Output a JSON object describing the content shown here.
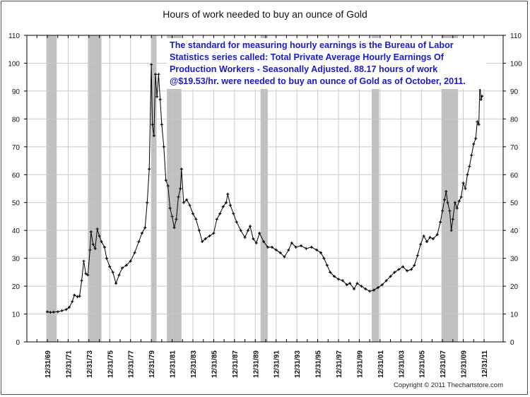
{
  "chart_data": {
    "type": "line",
    "title": "Hours of work needed to buy an ounce of Gold",
    "xlabel": "",
    "ylabel": "",
    "ylim": [
      0,
      110
    ],
    "yticks": [
      0,
      10,
      20,
      30,
      40,
      50,
      60,
      70,
      80,
      90,
      100,
      110
    ],
    "xtick_labels": [
      "12/31/69",
      "12/31/71",
      "12/31/73",
      "12/31/75",
      "12/31/77",
      "12/31/79",
      "12/31/81",
      "12/31/83",
      "12/31/85",
      "12/31/87",
      "12/31/89",
      "12/31/91",
      "12/31/93",
      "12/31/95",
      "12/31/97",
      "12/31/99",
      "12/31/01",
      "12/31/03",
      "12/31/05",
      "12/31/07",
      "12/31/09",
      "12/31/11"
    ],
    "grid": true,
    "y_axis_both_sides": true,
    "line_color": "#000000",
    "band_color": "#c0c0c0",
    "recession_bands": [
      [
        1969.9,
        1970.9
      ],
      [
        1973.9,
        1975.2
      ],
      [
        1980.0,
        1980.5
      ],
      [
        1981.5,
        1982.9
      ],
      [
        1990.5,
        1991.2
      ],
      [
        2001.2,
        2001.9
      ],
      [
        2007.9,
        2009.5
      ]
    ],
    "points": [
      [
        1970.0,
        10.8
      ],
      [
        1970.3,
        10.6
      ],
      [
        1970.6,
        10.7
      ],
      [
        1971.0,
        10.8
      ],
      [
        1971.4,
        11.2
      ],
      [
        1971.8,
        11.6
      ],
      [
        1972.1,
        12.4
      ],
      [
        1972.4,
        14.5
      ],
      [
        1972.6,
        16.8
      ],
      [
        1972.9,
        16.2
      ],
      [
        1973.1,
        16.4
      ],
      [
        1973.3,
        22
      ],
      [
        1973.5,
        29
      ],
      [
        1973.7,
        24.5
      ],
      [
        1973.9,
        24
      ],
      [
        1974.1,
        33
      ],
      [
        1974.2,
        39.5
      ],
      [
        1974.4,
        35
      ],
      [
        1974.6,
        33.5
      ],
      [
        1974.8,
        40.5
      ],
      [
        1975.0,
        38
      ],
      [
        1975.2,
        36
      ],
      [
        1975.5,
        34
      ],
      [
        1975.7,
        30
      ],
      [
        1976.0,
        27
      ],
      [
        1976.3,
        25
      ],
      [
        1976.6,
        21
      ],
      [
        1976.9,
        24
      ],
      [
        1977.2,
        26.5
      ],
      [
        1977.6,
        27.5
      ],
      [
        1978.0,
        29
      ],
      [
        1978.4,
        32
      ],
      [
        1978.8,
        36
      ],
      [
        1979.1,
        39
      ],
      [
        1979.4,
        41
      ],
      [
        1979.6,
        50
      ],
      [
        1979.8,
        62
      ],
      [
        1980.0,
        99.5
      ],
      [
        1980.1,
        78
      ],
      [
        1980.25,
        74
      ],
      [
        1980.4,
        96
      ],
      [
        1980.55,
        88
      ],
      [
        1980.7,
        96
      ],
      [
        1980.85,
        87
      ],
      [
        1981.0,
        78
      ],
      [
        1981.2,
        70
      ],
      [
        1981.4,
        58
      ],
      [
        1981.6,
        56
      ],
      [
        1981.8,
        48
      ],
      [
        1982.0,
        45
      ],
      [
        1982.2,
        41
      ],
      [
        1982.4,
        44
      ],
      [
        1982.6,
        52
      ],
      [
        1982.8,
        55
      ],
      [
        1982.9,
        62
      ],
      [
        1983.1,
        50
      ],
      [
        1983.4,
        51
      ],
      [
        1983.7,
        49
      ],
      [
        1984.0,
        46
      ],
      [
        1984.3,
        44
      ],
      [
        1984.6,
        40
      ],
      [
        1984.9,
        36
      ],
      [
        1985.2,
        37
      ],
      [
        1985.6,
        38
      ],
      [
        1986.0,
        39
      ],
      [
        1986.3,
        44
      ],
      [
        1986.6,
        46
      ],
      [
        1986.9,
        48.5
      ],
      [
        1987.2,
        50
      ],
      [
        1987.35,
        53
      ],
      [
        1987.6,
        49
      ],
      [
        1987.9,
        46
      ],
      [
        1988.2,
        43
      ],
      [
        1988.6,
        40
      ],
      [
        1989.0,
        37.5
      ],
      [
        1989.3,
        40
      ],
      [
        1989.5,
        41.5
      ],
      [
        1989.8,
        37
      ],
      [
        1990.1,
        35.5
      ],
      [
        1990.4,
        39
      ],
      [
        1990.8,
        36
      ],
      [
        1991.2,
        34
      ],
      [
        1991.6,
        34
      ],
      [
        1992.0,
        33
      ],
      [
        1992.4,
        32
      ],
      [
        1992.8,
        30.5
      ],
      [
        1993.2,
        33
      ],
      [
        1993.5,
        35.5
      ],
      [
        1993.9,
        34
      ],
      [
        1994.4,
        34.5
      ],
      [
        1994.9,
        33.5
      ],
      [
        1995.4,
        34
      ],
      [
        1995.9,
        33
      ],
      [
        1996.3,
        32
      ],
      [
        1996.6,
        30
      ],
      [
        1996.9,
        27.5
      ],
      [
        1997.2,
        25
      ],
      [
        1997.6,
        23.5
      ],
      [
        1998.0,
        22.5
      ],
      [
        1998.4,
        22
      ],
      [
        1998.8,
        20.5
      ],
      [
        1999.1,
        21
      ],
      [
        1999.5,
        19
      ],
      [
        1999.8,
        21
      ],
      [
        2000.2,
        20
      ],
      [
        2000.6,
        19
      ],
      [
        2001.0,
        18.2
      ],
      [
        2001.4,
        18.6
      ],
      [
        2001.8,
        19.5
      ],
      [
        2002.2,
        20.5
      ],
      [
        2002.6,
        22
      ],
      [
        2003.0,
        23.5
      ],
      [
        2003.4,
        25
      ],
      [
        2003.8,
        26
      ],
      [
        2004.2,
        27
      ],
      [
        2004.6,
        25.5
      ],
      [
        2005.0,
        26
      ],
      [
        2005.3,
        27.5
      ],
      [
        2005.6,
        31
      ],
      [
        2005.9,
        35
      ],
      [
        2006.2,
        38
      ],
      [
        2006.5,
        36
      ],
      [
        2006.8,
        37.5
      ],
      [
        2007.1,
        37
      ],
      [
        2007.5,
        38.5
      ],
      [
        2007.8,
        43
      ],
      [
        2008.0,
        47
      ],
      [
        2008.2,
        51
      ],
      [
        2008.35,
        54
      ],
      [
        2008.5,
        50
      ],
      [
        2008.7,
        47
      ],
      [
        2008.85,
        40
      ],
      [
        2009.0,
        44
      ],
      [
        2009.2,
        50
      ],
      [
        2009.4,
        48
      ],
      [
        2009.6,
        50.5
      ],
      [
        2009.8,
        52
      ],
      [
        2010.0,
        57
      ],
      [
        2010.2,
        55
      ],
      [
        2010.4,
        60
      ],
      [
        2010.6,
        63
      ],
      [
        2010.8,
        67
      ],
      [
        2011.0,
        71
      ],
      [
        2011.2,
        73
      ],
      [
        2011.35,
        79
      ],
      [
        2011.5,
        78
      ],
      [
        2011.6,
        93
      ],
      [
        2011.7,
        87
      ],
      [
        2011.8,
        88.17
      ]
    ]
  },
  "annotation": "The standard for measuring hourly earnings is the Bureau of Labor\nStatistics series called:  Total Private Average Hourly Earnings Of\nProduction Workers - Seasonally Adjusted.  88.17 hours of work\n@$19.53/hr. were needed to buy an ounce of Gold as of October, 2011.",
  "copyright": "Copyright © 2011 Thechartstore.com"
}
